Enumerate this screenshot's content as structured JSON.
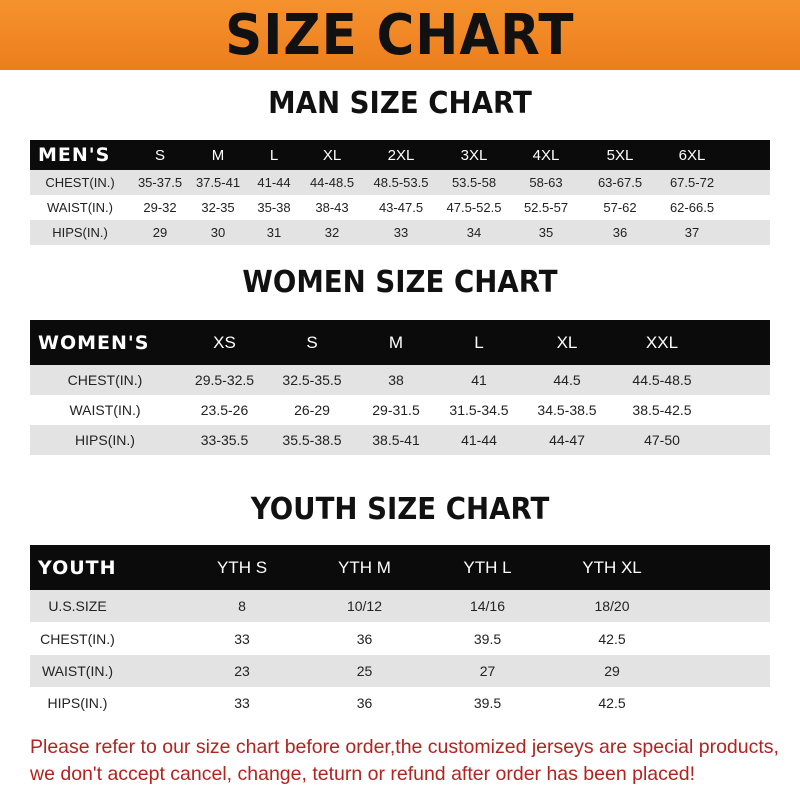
{
  "banner_title": "SIZE CHART",
  "banner_color": "#f08a24",
  "men": {
    "title": "MAN SIZE CHART",
    "header_label": "MEN'S",
    "sizes": [
      "S",
      "M",
      "L",
      "XL",
      "2XL",
      "3XL",
      "4XL",
      "5XL",
      "6XL"
    ],
    "rows": [
      {
        "label": "CHEST(IN.)",
        "values": [
          "35-37.5",
          "37.5-41",
          "41-44",
          "44-48.5",
          "48.5-53.5",
          "53.5-58",
          "58-63",
          "63-67.5",
          "67.5-72"
        ]
      },
      {
        "label": "WAIST(IN.)",
        "values": [
          "29-32",
          "32-35",
          "35-38",
          "38-43",
          "43-47.5",
          "47.5-52.5",
          "52.5-57",
          "57-62",
          "62-66.5"
        ]
      },
      {
        "label": "HIPS(IN.)",
        "values": [
          "29",
          "30",
          "31",
          "32",
          "33",
          "34",
          "35",
          "36",
          "37"
        ]
      }
    ]
  },
  "women": {
    "title": "WOMEN SIZE CHART",
    "header_label": "WOMEN'S",
    "sizes": [
      "XS",
      "S",
      "M",
      "L",
      "XL",
      "XXL"
    ],
    "rows": [
      {
        "label": "CHEST(IN.)",
        "values": [
          "29.5-32.5",
          "32.5-35.5",
          "38",
          "41",
          "44.5",
          "44.5-48.5"
        ]
      },
      {
        "label": "WAIST(IN.)",
        "values": [
          "23.5-26",
          "26-29",
          "29-31.5",
          "31.5-34.5",
          "34.5-38.5",
          "38.5-42.5"
        ]
      },
      {
        "label": "HIPS(IN.)",
        "values": [
          "33-35.5",
          "35.5-38.5",
          "38.5-41",
          "41-44",
          "44-47",
          "47-50"
        ]
      }
    ]
  },
  "youth": {
    "title": "YOUTH SIZE CHART",
    "header_label": "YOUTH",
    "sizes": [
      "YTH S",
      "YTH M",
      "YTH L",
      "YTH XL"
    ],
    "rows": [
      {
        "label": "U.S.SIZE",
        "values": [
          "8",
          "10/12",
          "14/16",
          "18/20"
        ]
      },
      {
        "label": "CHEST(IN.)",
        "values": [
          "33",
          "36",
          "39.5",
          "42.5"
        ]
      },
      {
        "label": "WAIST(IN.)",
        "values": [
          "23",
          "25",
          "27",
          "29"
        ]
      },
      {
        "label": "HIPS(IN.)",
        "values": [
          "33",
          "36",
          "39.5",
          "42.5"
        ]
      }
    ]
  },
  "footer_note": "Please refer to our size chart before order,the customized jerseys are special products, we don't accept cancel, change, teturn or refund after order has been placed!",
  "footer_color": "#b3231e"
}
